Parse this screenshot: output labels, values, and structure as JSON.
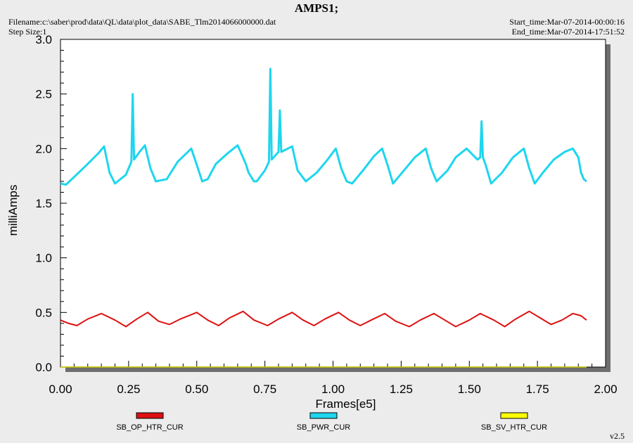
{
  "header": {
    "title": "AMPS1;",
    "filename": "Filename:c:\\saber\\prod\\data\\QL\\data\\plot_data\\SABE_Tlm2014066000000.dat",
    "step_size": "Step Size:1",
    "start_time": "Start_time:Mar-07-2014-00:00:16",
    "end_time": "End_time:Mar-07-2014-17:51:52"
  },
  "version": "v2.5",
  "colors": {
    "plot_bg": "#ffffff",
    "page_bg": "#ececec",
    "shadow": "#6e6e6e",
    "op_htr": "#dd1111",
    "pwr": "#1ed6ee",
    "sv_htr": "#ffff00"
  },
  "chart_data": {
    "type": "line",
    "xlabel": "Frames[e5]",
    "ylabel": "milliAmps",
    "xlim": [
      0.0,
      2.0
    ],
    "ylim": [
      0.0,
      3.0
    ],
    "x_ticks": [
      "0.00",
      "0.25",
      "0.50",
      "0.75",
      "1.00",
      "1.25",
      "1.50",
      "1.75",
      "2.00"
    ],
    "y_ticks": [
      "0.0",
      "0.5",
      "1.0",
      "1.5",
      "2.0",
      "2.5",
      "3.0"
    ],
    "grid": false,
    "legend_position": "bottom",
    "series": [
      {
        "name": "SB_OP_HTR_CUR",
        "color": "#dd1111",
        "x": [
          0.0,
          0.03,
          0.06,
          0.1,
          0.15,
          0.2,
          0.24,
          0.28,
          0.32,
          0.36,
          0.4,
          0.44,
          0.5,
          0.54,
          0.58,
          0.62,
          0.67,
          0.71,
          0.76,
          0.8,
          0.85,
          0.89,
          0.93,
          0.97,
          1.02,
          1.06,
          1.1,
          1.14,
          1.19,
          1.23,
          1.28,
          1.32,
          1.37,
          1.41,
          1.45,
          1.5,
          1.54,
          1.59,
          1.63,
          1.67,
          1.72,
          1.76,
          1.8,
          1.84,
          1.88,
          1.91,
          1.93
        ],
        "y": [
          0.43,
          0.4,
          0.38,
          0.44,
          0.49,
          0.43,
          0.37,
          0.44,
          0.5,
          0.42,
          0.39,
          0.44,
          0.5,
          0.43,
          0.38,
          0.45,
          0.51,
          0.43,
          0.38,
          0.44,
          0.5,
          0.43,
          0.38,
          0.44,
          0.5,
          0.43,
          0.38,
          0.43,
          0.49,
          0.42,
          0.37,
          0.43,
          0.49,
          0.43,
          0.37,
          0.43,
          0.49,
          0.43,
          0.37,
          0.44,
          0.51,
          0.45,
          0.39,
          0.43,
          0.49,
          0.47,
          0.43
        ]
      },
      {
        "name": "SB_PWR_CUR",
        "color": "#1ed6ee",
        "x": [
          0.0,
          0.02,
          0.05,
          0.1,
          0.14,
          0.16,
          0.18,
          0.2,
          0.24,
          0.26,
          0.265,
          0.27,
          0.29,
          0.31,
          0.33,
          0.35,
          0.39,
          0.43,
          0.48,
          0.5,
          0.52,
          0.54,
          0.57,
          0.61,
          0.65,
          0.68,
          0.69,
          0.71,
          0.72,
          0.75,
          0.765,
          0.77,
          0.775,
          0.8,
          0.805,
          0.81,
          0.85,
          0.87,
          0.9,
          0.94,
          0.98,
          1.01,
          1.03,
          1.05,
          1.07,
          1.11,
          1.15,
          1.18,
          1.2,
          1.22,
          1.26,
          1.3,
          1.34,
          1.36,
          1.38,
          1.42,
          1.45,
          1.49,
          1.53,
          1.54,
          1.545,
          1.55,
          1.56,
          1.58,
          1.62,
          1.66,
          1.7,
          1.72,
          1.74,
          1.77,
          1.81,
          1.85,
          1.88,
          1.9,
          1.91,
          1.92,
          1.93
        ],
        "y": [
          1.68,
          1.67,
          1.74,
          1.86,
          1.96,
          2.02,
          1.78,
          1.68,
          1.76,
          1.88,
          2.5,
          1.9,
          1.97,
          2.03,
          1.82,
          1.7,
          1.72,
          1.88,
          2.0,
          1.85,
          1.7,
          1.72,
          1.86,
          1.95,
          2.03,
          1.86,
          1.78,
          1.7,
          1.7,
          1.8,
          1.88,
          2.73,
          1.9,
          1.97,
          2.35,
          1.97,
          2.02,
          1.8,
          1.7,
          1.78,
          1.9,
          2.0,
          1.82,
          1.7,
          1.68,
          1.8,
          1.93,
          2.0,
          1.85,
          1.68,
          1.8,
          1.92,
          2.0,
          1.82,
          1.7,
          1.8,
          1.92,
          2.0,
          1.9,
          1.92,
          2.25,
          1.92,
          1.85,
          1.68,
          1.78,
          1.92,
          2.0,
          1.82,
          1.68,
          1.78,
          1.9,
          1.97,
          2.0,
          1.92,
          1.78,
          1.72,
          1.7
        ]
      },
      {
        "name": "SB_SV_HTR_CUR",
        "color": "#ffff00",
        "x": [
          0.0,
          1.93
        ],
        "y": [
          0.0,
          0.0
        ]
      }
    ]
  }
}
